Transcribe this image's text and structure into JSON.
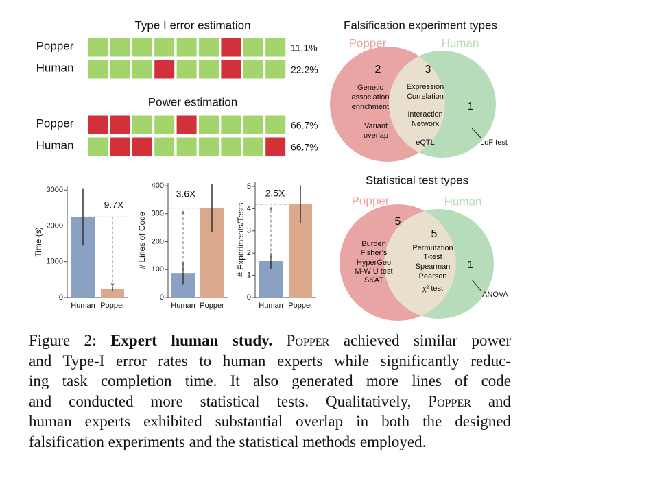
{
  "grids": [
    {
      "title": "Type I error estimation",
      "colors": [
        "#d3313a",
        "#a4d56d"
      ],
      "rows": [
        {
          "name": "Popper",
          "cells": [
            1,
            1,
            1,
            1,
            1,
            1,
            0,
            1,
            1
          ],
          "label": "11.1%"
        },
        {
          "name": "Human",
          "cells": [
            1,
            1,
            1,
            0,
            1,
            1,
            0,
            1,
            1
          ],
          "label": "22.2%"
        }
      ]
    },
    {
      "title": "Power estimation",
      "colors": [
        "#d3313a",
        "#a4d56d"
      ],
      "rows": [
        {
          "name": "Popper",
          "cells": [
            0,
            0,
            1,
            1,
            0,
            1,
            1,
            1,
            1
          ],
          "label": "66.7%"
        },
        {
          "name": "Human",
          "cells": [
            1,
            0,
            0,
            1,
            1,
            1,
            1,
            1,
            0
          ],
          "label": "66.7%"
        }
      ]
    }
  ],
  "chart_data": [
    {
      "type": "bar",
      "y_label": "Time (s)",
      "categories": [
        "Human",
        "Popper"
      ],
      "values": [
        2250,
        230
      ],
      "errors": [
        800,
        60
      ],
      "colors": [
        "#8ba1c4",
        "#dca98c"
      ],
      "ylim": [
        0,
        3100
      ],
      "yticks": [
        0,
        1000,
        2000,
        3000
      ],
      "annotation": "9.7X"
    },
    {
      "type": "bar",
      "y_label": "# Lines of Code",
      "categories": [
        "Human",
        "Popper"
      ],
      "values": [
        88,
        320
      ],
      "errors": [
        40,
        85
      ],
      "colors": [
        "#8ba1c4",
        "#dca98c"
      ],
      "ylim": [
        0,
        410
      ],
      "yticks": [
        0,
        100,
        200,
        300,
        400
      ],
      "annotation": "3.6X"
    },
    {
      "type": "bar",
      "y_label": "# Experiments/Tests",
      "categories": [
        "Human",
        "Popper"
      ],
      "values": [
        1.65,
        4.2
      ],
      "errors": [
        0.35,
        0.85
      ],
      "colors": [
        "#8ba1c4",
        "#dca98c"
      ],
      "ylim": [
        0,
        5.2
      ],
      "yticks": [
        0,
        1,
        2,
        3,
        4,
        5
      ],
      "annotation": "2.5X"
    }
  ],
  "venns": [
    {
      "title": "Falsification experiment types",
      "sets": [
        {
          "name": "Popper",
          "color": "#e9a4a4"
        },
        {
          "name": "Human",
          "color": "#b6dcb9"
        }
      ],
      "overlap_color": "#e8dfcc",
      "regions": [
        {
          "count": "2",
          "items": [
            [
              "Genetic",
              "association",
              "enrichment"
            ],
            [
              "Variant",
              "overlap"
            ]
          ]
        },
        {
          "count": "3",
          "items": [
            [
              "Expression",
              "Correlation"
            ],
            [
              "Interaction",
              "Network"
            ],
            [
              "eQTL"
            ]
          ]
        },
        {
          "count": "1",
          "callout": "LoF test"
        }
      ]
    },
    {
      "title": "Statistical test types",
      "sets": [
        {
          "name": "Popper",
          "color": "#e9a4a4"
        },
        {
          "name": "Human",
          "color": "#b6dcb9"
        }
      ],
      "overlap_color": "#e8dfcc",
      "regions": [
        {
          "count": "5",
          "items": [
            [
              "Burden"
            ],
            [
              "Fisher’s"
            ],
            [
              "HyperGeo"
            ],
            [
              "M-W U test"
            ],
            [
              "SKAT"
            ]
          ]
        },
        {
          "count": "5",
          "items": [
            [
              "Permutation"
            ],
            [
              "T-test"
            ],
            [
              "Spearman"
            ],
            [
              "Pearson"
            ],
            [
              "χ² test"
            ]
          ]
        },
        {
          "count": "1",
          "callout": "ANOVA"
        }
      ]
    }
  ],
  "caption": {
    "lines": [
      [
        "Figure 2:",
        "Expert human study.",
        "Popper",
        "achieved similar power"
      ],
      [
        "and Type-I error rates to human experts while significantly reduc-"
      ],
      [
        "ing task completion time.  It also generated more lines of code"
      ],
      [
        "and conducted more statistical tests. Qualitatively,",
        "Popper",
        "and"
      ],
      [
        "human experts exhibited substantial overlap in both the designed"
      ],
      [
        "falsification experiments and the statistical methods employed."
      ]
    ]
  }
}
